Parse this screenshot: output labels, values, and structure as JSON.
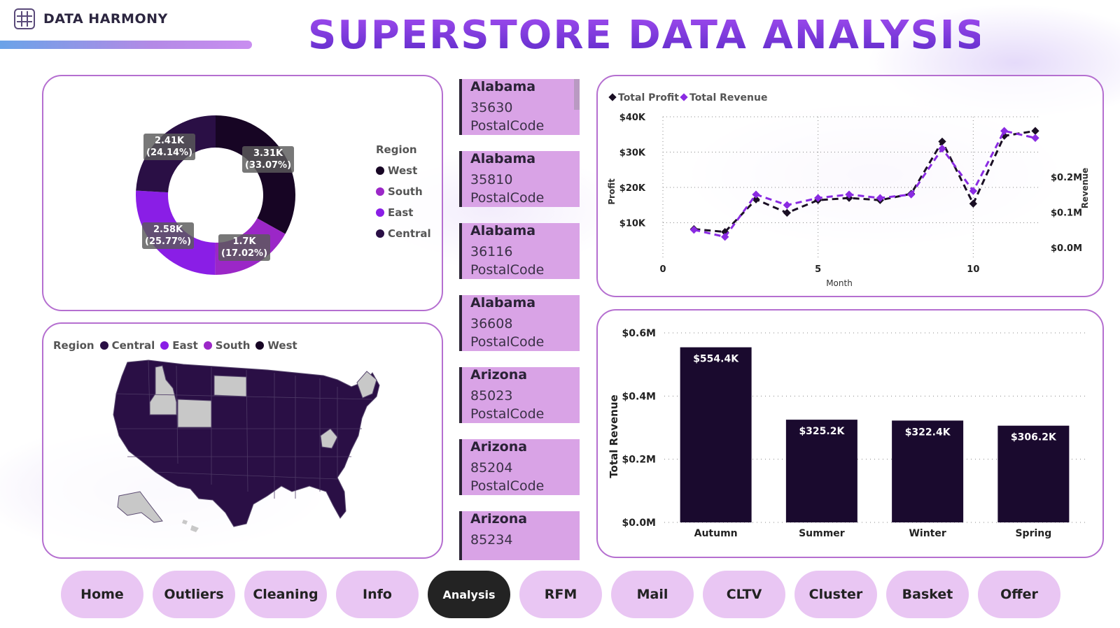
{
  "brand": {
    "name": "DATA HARMONY"
  },
  "title": "SUPERSTORE DATA ANALYSIS",
  "colors": {
    "accent": "#b56fd0",
    "central": "#1e0a33",
    "east": "#8a1ee6",
    "south": "#9b27c7",
    "west": "#170524"
  },
  "donut": {
    "legend_title": "Region",
    "legend": [
      "West",
      "South",
      "East",
      "Central"
    ],
    "slices": [
      {
        "region": "West",
        "value": 3.31,
        "label": "3.31K",
        "pct": "(33.07%)",
        "color": "#170524"
      },
      {
        "region": "South",
        "value": 1.7,
        "label": "1.7K",
        "pct": "(17.02%)",
        "color": "#9b27c7"
      },
      {
        "region": "East",
        "value": 2.58,
        "label": "2.58K",
        "pct": "(25.77%)",
        "color": "#8a1ee6"
      },
      {
        "region": "Central",
        "value": 2.41,
        "label": "2.41K",
        "pct": "(24.14%)",
        "color": "#2a0f45"
      }
    ]
  },
  "map": {
    "legend_title": "Region",
    "legend": [
      "Central",
      "East",
      "South",
      "West"
    ]
  },
  "list": {
    "items": [
      {
        "state": "Alabama",
        "zip": "35630",
        "field": "PostalCode"
      },
      {
        "state": "Alabama",
        "zip": "35810",
        "field": "PostalCode"
      },
      {
        "state": "Alabama",
        "zip": "36116",
        "field": "PostalCode"
      },
      {
        "state": "Alabama",
        "zip": "36608",
        "field": "PostalCode"
      },
      {
        "state": "Arizona",
        "zip": "85023",
        "field": "PostalCode"
      },
      {
        "state": "Arizona",
        "zip": "85204",
        "field": "PostalCode"
      },
      {
        "state": "Arizona",
        "zip": "85234",
        "field": ""
      }
    ]
  },
  "chart_data": [
    {
      "type": "line",
      "legend": [
        "Total Profit",
        "Total Revenue"
      ],
      "xlabel": "Month",
      "ylabel": "Profit",
      "y2label": "Revenue",
      "x_ticks": [
        "0",
        "5",
        "10"
      ],
      "y_ticks": [
        "$10K",
        "$20K",
        "$30K",
        "$40K"
      ],
      "y2_ticks": [
        "$0.0M",
        "$0.1M",
        "$0.2M"
      ],
      "x": [
        1,
        2,
        3,
        4,
        5,
        6,
        7,
        8,
        9,
        10,
        11,
        12
      ],
      "series": [
        {
          "name": "Total Profit",
          "axis": "left",
          "color": "#1a0f24",
          "values": [
            8.2,
            7.4,
            16.6,
            12.8,
            16.4,
            17.0,
            16.4,
            18.2,
            33.0,
            15.4,
            34.6,
            36.0
          ]
        },
        {
          "name": "Total Revenue",
          "axis": "right",
          "color": "#8a2be2",
          "values": [
            0.05,
            0.03,
            0.15,
            0.12,
            0.14,
            0.15,
            0.14,
            0.15,
            0.28,
            0.16,
            0.33,
            0.31
          ]
        }
      ]
    },
    {
      "type": "bar",
      "categories": [
        "Autumn",
        "Summer",
        "Winter",
        "Spring"
      ],
      "values": [
        554.4,
        325.2,
        322.4,
        306.2
      ],
      "labels": [
        "$554.4K",
        "$325.2K",
        "$322.4K",
        "$306.2K"
      ],
      "ylabel": "Total Revenue",
      "y_ticks": [
        "$0.0M",
        "$0.2M",
        "$0.4M",
        "$0.6M"
      ],
      "color": "#1a0a2e"
    }
  ],
  "nav": {
    "items": [
      "Home",
      "Outliers",
      "Cleaning",
      "Info",
      "Analysis",
      "RFM",
      "Mail",
      "CLTV",
      "Cluster",
      "Basket",
      "Offer"
    ],
    "active": "Analysis"
  }
}
